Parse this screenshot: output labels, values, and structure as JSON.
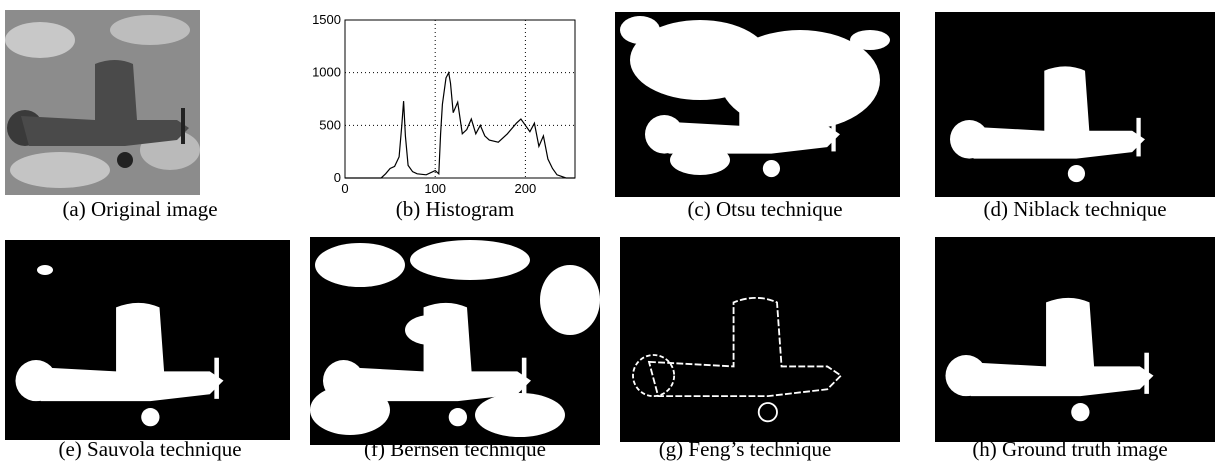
{
  "captions": [
    "(a) Original image",
    "(b) Histogram",
    "(c) Otsu technique",
    "(d) Niblack technique",
    "(e) Sauvola technique",
    "(f) Bernsen technique",
    "(g)  Feng’s technique",
    "(h) Ground truth image"
  ],
  "chart_data": {
    "type": "line",
    "color": "#000000",
    "grid": true,
    "x": [
      0,
      40,
      45,
      50,
      55,
      60,
      63,
      65,
      67,
      70,
      75,
      80,
      90,
      100,
      104,
      106,
      108,
      112,
      115,
      117,
      120,
      125,
      130,
      135,
      140,
      145,
      150,
      155,
      160,
      170,
      180,
      190,
      195,
      200,
      205,
      210,
      215,
      220,
      225,
      230,
      235,
      245,
      255
    ],
    "values": [
      0,
      0,
      40,
      90,
      110,
      200,
      500,
      730,
      400,
      120,
      60,
      40,
      30,
      70,
      40,
      420,
      700,
      950,
      1000,
      900,
      620,
      720,
      420,
      460,
      560,
      420,
      500,
      400,
      360,
      340,
      420,
      520,
      560,
      500,
      440,
      520,
      300,
      400,
      180,
      90,
      30,
      0,
      0
    ],
    "xlim": [
      0,
      255
    ],
    "xticks": [
      0,
      100,
      200
    ],
    "ylim": [
      0,
      1500
    ],
    "yticks": [
      0,
      500,
      1000,
      1500
    ]
  }
}
